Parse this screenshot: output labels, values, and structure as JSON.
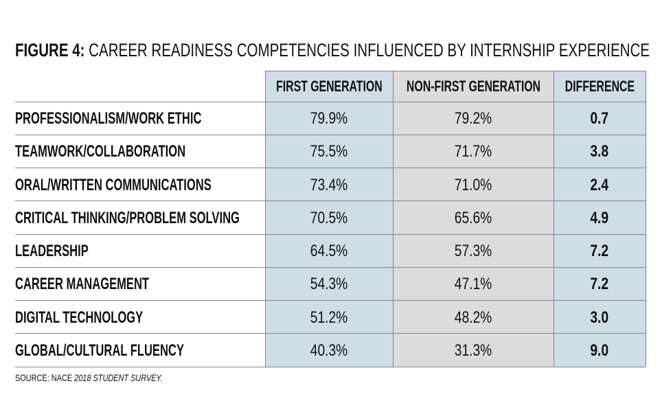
{
  "title": {
    "label": "FIGURE 4:",
    "text": "CAREER READINESS COMPETENCIES INFLUENCED BY INTERNSHIP EXPERIENCE"
  },
  "table": {
    "headers": [
      "FIRST GENERATION",
      "NON-FIRST GENERATION",
      "DIFFERENCE"
    ],
    "rows": [
      [
        "PROFESSIONALISM/WORK ETHIC",
        "79.9%",
        "79.2%",
        "0.7"
      ],
      [
        "TEAMWORK/COLLABORATION",
        "75.5%",
        "71.7%",
        "3.8"
      ],
      [
        "ORAL/WRITTEN COMMUNICATIONS",
        "73.4%",
        "71.0%",
        "2.4"
      ],
      [
        "CRITICAL THINKING/PROBLEM SOLVING",
        "70.5%",
        "65.6%",
        "4.9"
      ],
      [
        "LEADERSHIP",
        "64.5%",
        "57.3%",
        "7.2"
      ],
      [
        "CAREER MANAGEMENT",
        "54.3%",
        "47.1%",
        "7.2"
      ],
      [
        "DIGITAL TECHNOLOGY",
        "51.2%",
        "48.2%",
        "3.0"
      ],
      [
        "GLOBAL/CULTURAL FLUENCY",
        "40.3%",
        "31.3%",
        "9.0"
      ]
    ]
  },
  "source": {
    "prefix": "SOURCE: NACE",
    "italic": "2018 STUDENT SURVEY."
  }
}
